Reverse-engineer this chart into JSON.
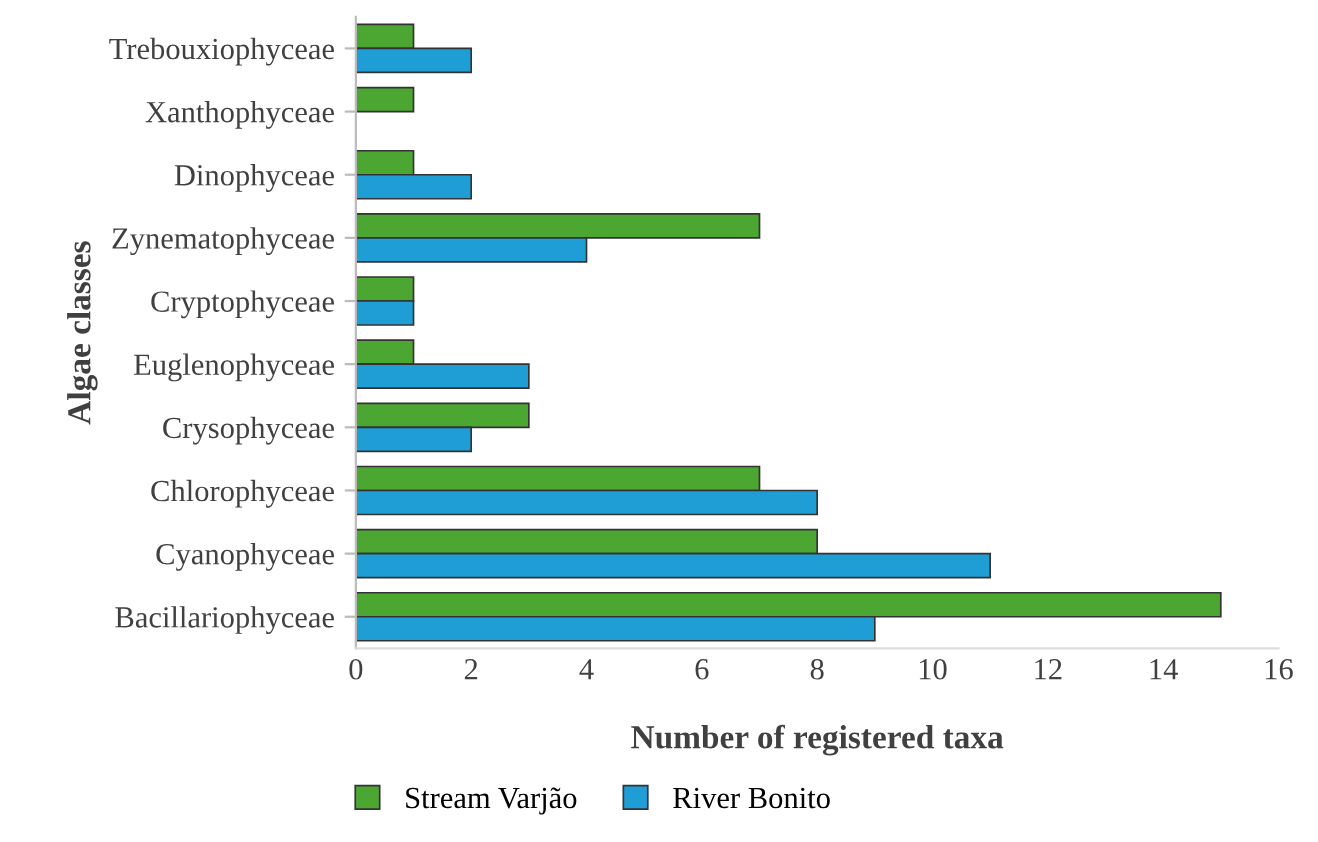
{
  "chart_data": {
    "type": "bar",
    "orientation": "horizontal",
    "xlabel": "Number of registered taxa",
    "ylabel": "Algae classes",
    "categories": [
      "Trebouxiophyceae",
      "Xanthophyceae",
      "Dinophyceae",
      "Zynematophyceae",
      "Cryptophyceae",
      "Euglenophyceae",
      "Crysophyceae",
      "Chlorophyceae",
      "Cyanophyceae",
      "Bacillariophyceae"
    ],
    "series": [
      {
        "name": "Stream Varjão",
        "color": "#4ca632",
        "values": [
          1,
          1,
          1,
          7,
          1,
          1,
          3,
          7,
          8,
          15
        ]
      },
      {
        "name": "River Bonito",
        "color": "#1f9ed6",
        "values": [
          2,
          null,
          2,
          4,
          1,
          3,
          2,
          8,
          11,
          9
        ]
      }
    ],
    "xlim": [
      0,
      16
    ],
    "xticks": [
      0,
      2,
      4,
      6,
      8,
      10,
      12,
      14,
      16
    ],
    "grid": false,
    "legend": "bottom"
  }
}
